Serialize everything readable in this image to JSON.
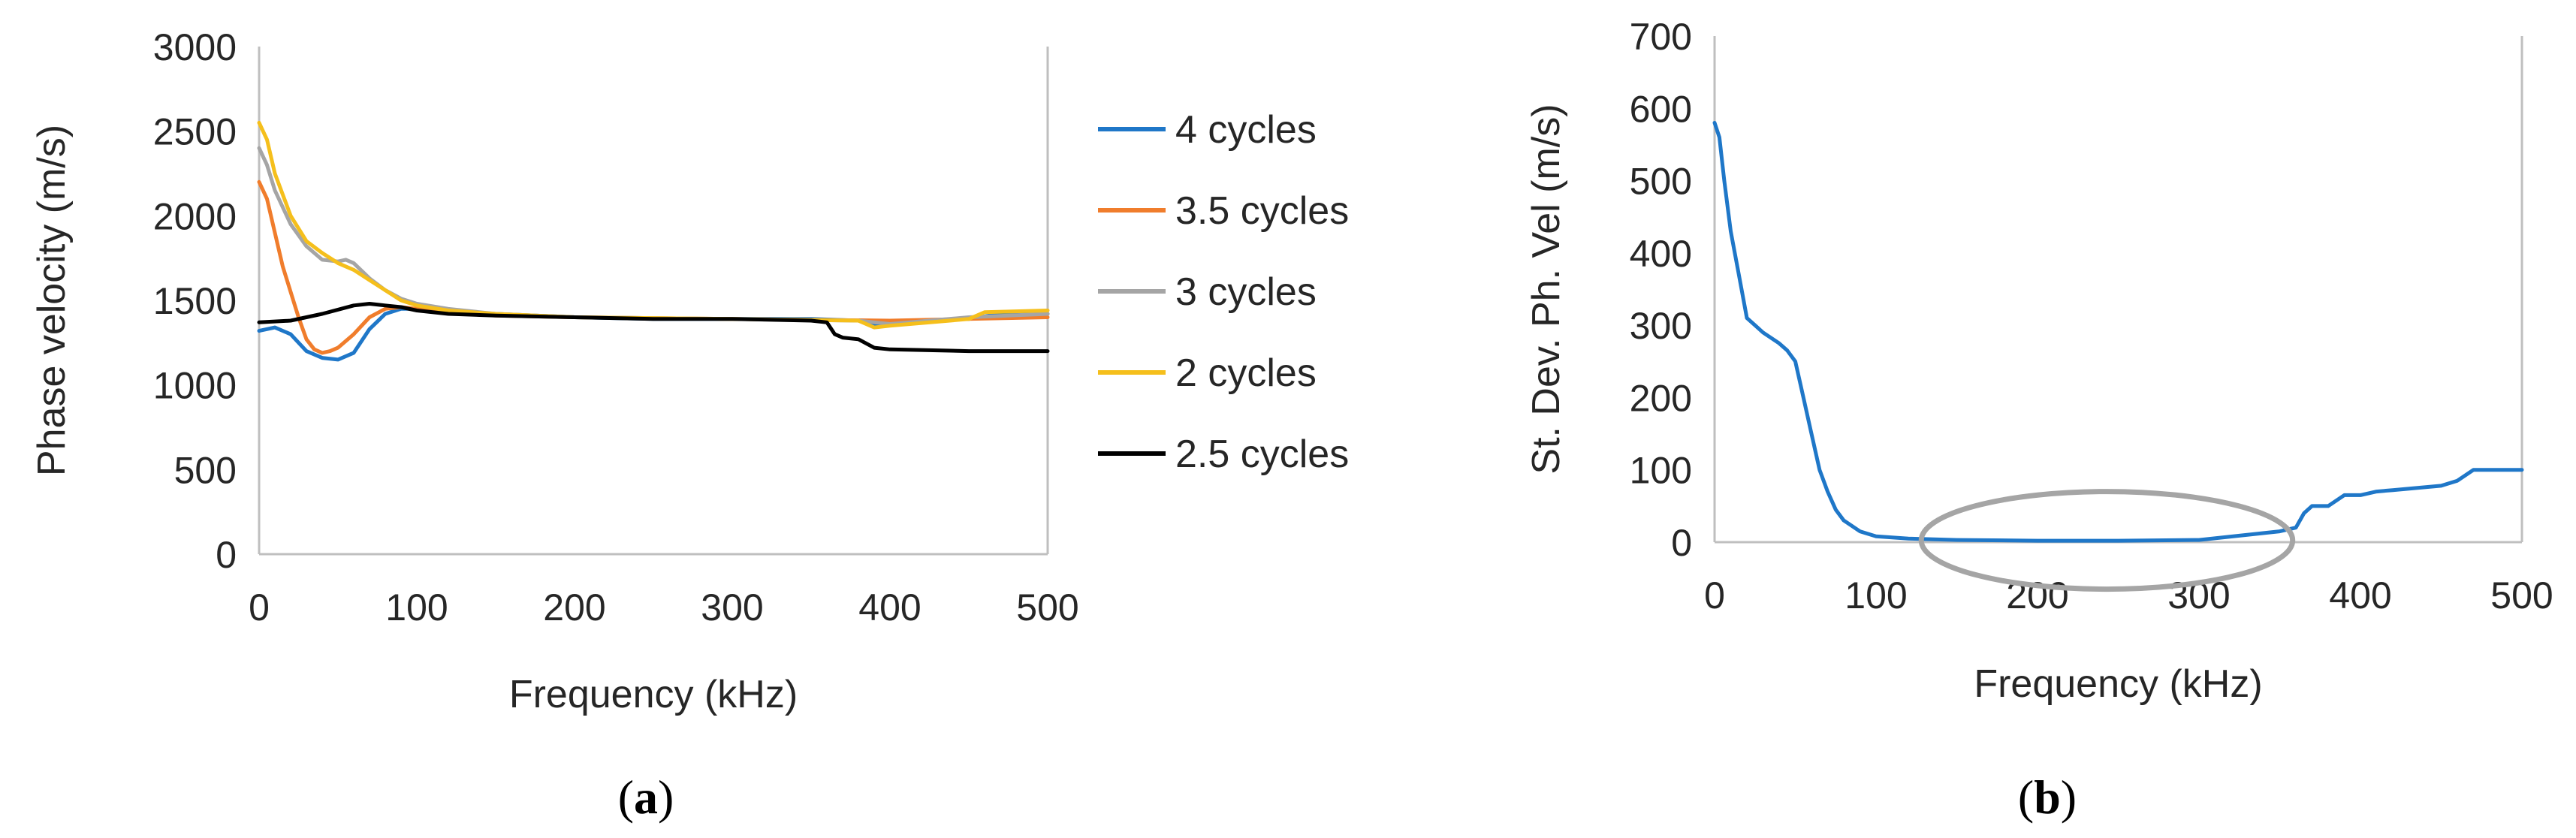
{
  "chart_data": [
    {
      "panel": "a",
      "panel_label": "a",
      "type": "line",
      "title": "",
      "xlabel": "Frequency (kHz)",
      "ylabel": "Phase velocity (m/s)",
      "xlim": [
        0,
        500
      ],
      "ylim": [
        0,
        3000
      ],
      "xticks": [
        "0",
        "100",
        "200",
        "300",
        "400",
        "500"
      ],
      "yticks": [
        "0",
        "500",
        "1000",
        "1500",
        "2000",
        "2500",
        "3000"
      ],
      "grid": false,
      "legend_position": "right",
      "series": [
        {
          "name": "4 cycles",
          "color": "#1f77c8",
          "x": [
            0,
            10,
            20,
            30,
            40,
            50,
            60,
            70,
            80,
            90,
            100,
            120,
            150,
            200,
            250,
            300,
            350,
            380,
            390,
            400,
            420,
            450,
            470,
            500
          ],
          "y": [
            1320,
            1340,
            1300,
            1200,
            1160,
            1150,
            1190,
            1330,
            1420,
            1450,
            1450,
            1440,
            1420,
            1400,
            1390,
            1390,
            1390,
            1380,
            1350,
            1360,
            1380,
            1390,
            1420,
            1420
          ]
        },
        {
          "name": "3.5 cycles",
          "color": "#f07d2c",
          "x": [
            0,
            5,
            10,
            15,
            20,
            25,
            30,
            35,
            40,
            45,
            50,
            60,
            70,
            80,
            90,
            100,
            120,
            150,
            200,
            300,
            400,
            500
          ],
          "y": [
            2200,
            2100,
            1900,
            1700,
            1550,
            1400,
            1270,
            1210,
            1190,
            1200,
            1220,
            1300,
            1400,
            1450,
            1460,
            1450,
            1430,
            1410,
            1400,
            1390,
            1380,
            1400
          ]
        },
        {
          "name": "3 cycles",
          "color": "#a5a5a5",
          "x": [
            0,
            5,
            10,
            20,
            30,
            40,
            50,
            55,
            60,
            70,
            80,
            90,
            100,
            120,
            150,
            200,
            300,
            380,
            390,
            400,
            450,
            500
          ],
          "y": [
            2400,
            2300,
            2150,
            1950,
            1820,
            1740,
            1730,
            1740,
            1720,
            1630,
            1560,
            1510,
            1480,
            1450,
            1420,
            1400,
            1390,
            1380,
            1370,
            1360,
            1400,
            1420
          ]
        },
        {
          "name": "2 cycles",
          "color": "#f5bf1c",
          "x": [
            0,
            5,
            10,
            20,
            30,
            40,
            50,
            60,
            70,
            80,
            90,
            100,
            120,
            150,
            200,
            300,
            380,
            390,
            400,
            450,
            460,
            500
          ],
          "y": [
            2550,
            2450,
            2250,
            2000,
            1850,
            1780,
            1720,
            1680,
            1620,
            1560,
            1500,
            1470,
            1440,
            1420,
            1400,
            1390,
            1380,
            1340,
            1350,
            1390,
            1430,
            1440
          ]
        },
        {
          "name": "2.5 cycles",
          "color": "#000000",
          "x": [
            0,
            20,
            40,
            60,
            70,
            80,
            90,
            100,
            120,
            150,
            200,
            250,
            300,
            350,
            360,
            365,
            370,
            380,
            390,
            400,
            450,
            500
          ],
          "y": [
            1370,
            1380,
            1420,
            1470,
            1480,
            1470,
            1460,
            1440,
            1420,
            1410,
            1400,
            1390,
            1390,
            1380,
            1370,
            1300,
            1280,
            1270,
            1220,
            1210,
            1200,
            1200
          ]
        }
      ]
    },
    {
      "panel": "b",
      "panel_label": "b",
      "type": "line",
      "title": "",
      "xlabel": "Frequency (kHz)",
      "ylabel": "St. Dev. Ph. Vel (m/s)",
      "xlim": [
        0,
        500
      ],
      "ylim": [
        0,
        700
      ],
      "xticks": [
        "0",
        "100",
        "200",
        "300",
        "400",
        "500"
      ],
      "yticks": [
        "0",
        "100",
        "200",
        "300",
        "400",
        "500",
        "600",
        "700"
      ],
      "grid": false,
      "series": [
        {
          "name": "St. Dev. Ph. Vel",
          "color": "#1f77c8",
          "x": [
            0,
            3,
            6,
            10,
            15,
            20,
            25,
            30,
            40,
            45,
            50,
            55,
            60,
            65,
            70,
            75,
            80,
            90,
            100,
            120,
            150,
            200,
            250,
            300,
            350,
            360,
            365,
            370,
            380,
            390,
            400,
            410,
            420,
            450,
            460,
            470,
            480,
            500
          ],
          "y": [
            580,
            560,
            500,
            430,
            370,
            310,
            300,
            290,
            275,
            265,
            250,
            200,
            150,
            100,
            70,
            45,
            30,
            15,
            8,
            5,
            3,
            2,
            2,
            3,
            15,
            20,
            40,
            50,
            50,
            65,
            65,
            70,
            72,
            78,
            85,
            100,
            100,
            100
          ]
        }
      ],
      "annotation": {
        "shape": "ellipse",
        "color": "#a5a5a5",
        "x_range": [
          128,
          358
        ],
        "y_range": [
          -65,
          70
        ]
      }
    }
  ]
}
